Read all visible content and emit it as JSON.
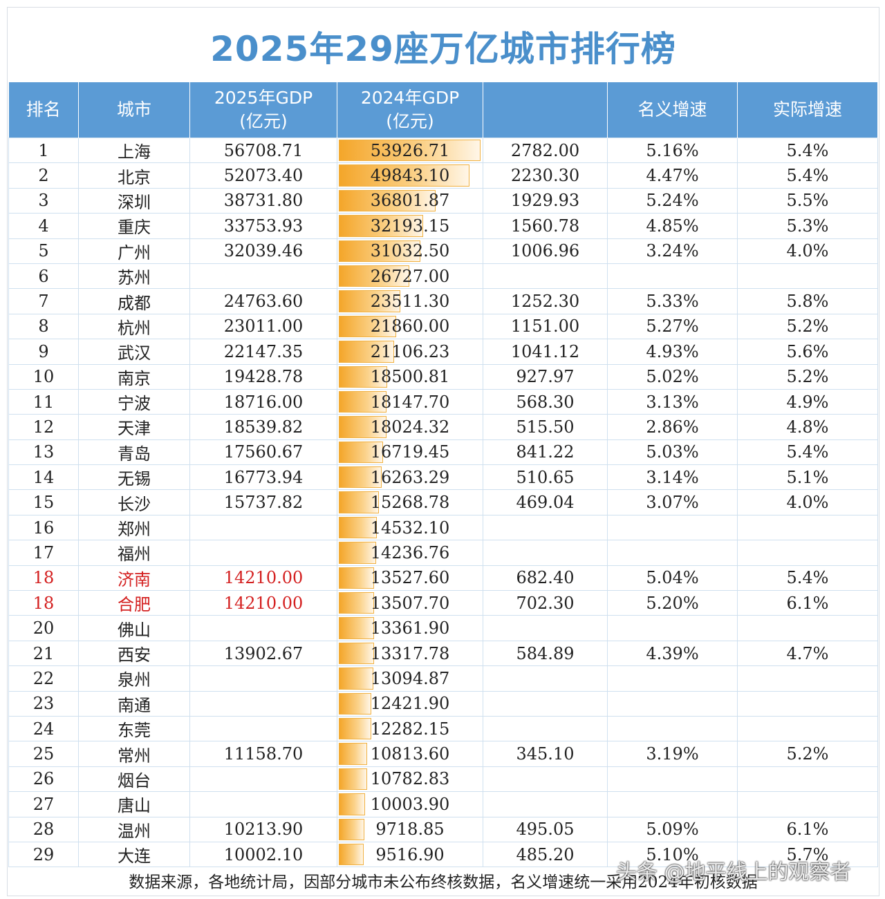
{
  "title": "2025年29座万亿城市排行榜",
  "headers": [
    "排名",
    "城市",
    "2025年GDP\n(亿元)",
    "2024年GDP\n(亿元)",
    "",
    "名义增速",
    "实际增速"
  ],
  "bar_color": "#f4a62a",
  "highlight_color": "#d42020",
  "rows": [
    {
      "rank": "1",
      "city": "上海",
      "gdp2025": "56708.71",
      "gdp2024": "53926.71",
      "diff": "2782.00",
      "nominal": "5.16%",
      "real": "5.4%",
      "v": 53926.71
    },
    {
      "rank": "2",
      "city": "北京",
      "gdp2025": "52073.40",
      "gdp2024": "49843.10",
      "diff": "2230.30",
      "nominal": "4.47%",
      "real": "5.4%",
      "v": 49843.1
    },
    {
      "rank": "3",
      "city": "深圳",
      "gdp2025": "38731.80",
      "gdp2024": "36801.87",
      "diff": "1929.93",
      "nominal": "5.24%",
      "real": "5.5%",
      "v": 36801.87
    },
    {
      "rank": "4",
      "city": "重庆",
      "gdp2025": "33753.93",
      "gdp2024": "32193.15",
      "diff": "1560.78",
      "nominal": "4.85%",
      "real": "5.3%",
      "v": 32193.15
    },
    {
      "rank": "5",
      "city": "广州",
      "gdp2025": "32039.46",
      "gdp2024": "31032.50",
      "diff": "1006.96",
      "nominal": "3.24%",
      "real": "4.0%",
      "v": 31032.5
    },
    {
      "rank": "6",
      "city": "苏州",
      "gdp2025": "",
      "gdp2024": "26727.00",
      "diff": "",
      "nominal": "",
      "real": "",
      "v": 26727.0
    },
    {
      "rank": "7",
      "city": "成都",
      "gdp2025": "24763.60",
      "gdp2024": "23511.30",
      "diff": "1252.30",
      "nominal": "5.33%",
      "real": "5.8%",
      "v": 23511.3
    },
    {
      "rank": "8",
      "city": "杭州",
      "gdp2025": "23011.00",
      "gdp2024": "21860.00",
      "diff": "1151.00",
      "nominal": "5.27%",
      "real": "5.2%",
      "v": 21860.0
    },
    {
      "rank": "9",
      "city": "武汉",
      "gdp2025": "22147.35",
      "gdp2024": "21106.23",
      "diff": "1041.12",
      "nominal": "4.93%",
      "real": "5.6%",
      "v": 21106.23
    },
    {
      "rank": "10",
      "city": "南京",
      "gdp2025": "19428.78",
      "gdp2024": "18500.81",
      "diff": "927.97",
      "nominal": "5.02%",
      "real": "5.2%",
      "v": 18500.81
    },
    {
      "rank": "11",
      "city": "宁波",
      "gdp2025": "18716.00",
      "gdp2024": "18147.70",
      "diff": "568.30",
      "nominal": "3.13%",
      "real": "4.9%",
      "v": 18147.7
    },
    {
      "rank": "12",
      "city": "天津",
      "gdp2025": "18539.82",
      "gdp2024": "18024.32",
      "diff": "515.50",
      "nominal": "2.86%",
      "real": "4.8%",
      "v": 18024.32
    },
    {
      "rank": "13",
      "city": "青岛",
      "gdp2025": "17560.67",
      "gdp2024": "16719.45",
      "diff": "841.22",
      "nominal": "5.03%",
      "real": "5.4%",
      "v": 16719.45
    },
    {
      "rank": "14",
      "city": "无锡",
      "gdp2025": "16773.94",
      "gdp2024": "16263.29",
      "diff": "510.65",
      "nominal": "3.14%",
      "real": "5.1%",
      "v": 16263.29
    },
    {
      "rank": "15",
      "city": "长沙",
      "gdp2025": "15737.82",
      "gdp2024": "15268.78",
      "diff": "469.04",
      "nominal": "3.07%",
      "real": "4.0%",
      "v": 15268.78
    },
    {
      "rank": "16",
      "city": "郑州",
      "gdp2025": "",
      "gdp2024": "14532.10",
      "diff": "",
      "nominal": "",
      "real": "",
      "v": 14532.1
    },
    {
      "rank": "17",
      "city": "福州",
      "gdp2025": "",
      "gdp2024": "14236.76",
      "diff": "",
      "nominal": "",
      "real": "",
      "v": 14236.76
    },
    {
      "rank": "18",
      "city": "济南",
      "gdp2025": "14210.00",
      "gdp2024": "13527.60",
      "diff": "682.40",
      "nominal": "5.04%",
      "real": "5.4%",
      "v": 13527.6,
      "highlight": true
    },
    {
      "rank": "18",
      "city": "合肥",
      "gdp2025": "14210.00",
      "gdp2024": "13507.70",
      "diff": "702.30",
      "nominal": "5.20%",
      "real": "6.1%",
      "v": 13507.7,
      "highlight": true
    },
    {
      "rank": "20",
      "city": "佛山",
      "gdp2025": "",
      "gdp2024": "13361.90",
      "diff": "",
      "nominal": "",
      "real": "",
      "v": 13361.9
    },
    {
      "rank": "21",
      "city": "西安",
      "gdp2025": "13902.67",
      "gdp2024": "13317.78",
      "diff": "584.89",
      "nominal": "4.39%",
      "real": "4.7%",
      "v": 13317.78
    },
    {
      "rank": "22",
      "city": "泉州",
      "gdp2025": "",
      "gdp2024": "13094.87",
      "diff": "",
      "nominal": "",
      "real": "",
      "v": 13094.87
    },
    {
      "rank": "23",
      "city": "南通",
      "gdp2025": "",
      "gdp2024": "12421.90",
      "diff": "",
      "nominal": "",
      "real": "",
      "v": 12421.9
    },
    {
      "rank": "24",
      "city": "东莞",
      "gdp2025": "",
      "gdp2024": "12282.15",
      "diff": "",
      "nominal": "",
      "real": "",
      "v": 12282.15
    },
    {
      "rank": "25",
      "city": "常州",
      "gdp2025": "11158.70",
      "gdp2024": "10813.60",
      "diff": "345.10",
      "nominal": "3.19%",
      "real": "5.2%",
      "v": 10813.6
    },
    {
      "rank": "26",
      "city": "烟台",
      "gdp2025": "",
      "gdp2024": "10782.83",
      "diff": "",
      "nominal": "",
      "real": "",
      "v": 10782.83
    },
    {
      "rank": "27",
      "city": "唐山",
      "gdp2025": "",
      "gdp2024": "10003.90",
      "diff": "",
      "nominal": "",
      "real": "",
      "v": 10003.9
    },
    {
      "rank": "28",
      "city": "温州",
      "gdp2025": "10213.90",
      "gdp2024": "9718.85",
      "diff": "495.05",
      "nominal": "5.09%",
      "real": "6.1%",
      "v": 9718.85
    },
    {
      "rank": "29",
      "city": "大连",
      "gdp2025": "10002.10",
      "gdp2024": "9516.90",
      "diff": "485.20",
      "nominal": "5.10%",
      "real": "5.7%",
      "v": 9516.9
    }
  ],
  "footnote": "数据来源，各地统计局，因部分城市未公布终核数据，名义增速统一采用2024年初核数据",
  "watermark": "头条 @地平线上的观察者"
}
